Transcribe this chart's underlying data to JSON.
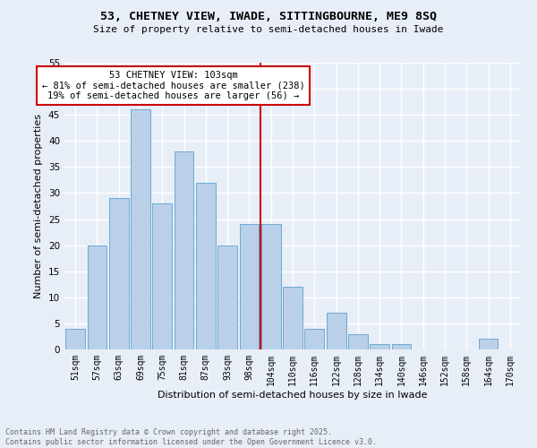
{
  "title": "53, CHETNEY VIEW, IWADE, SITTINGBOURNE, ME9 8SQ",
  "subtitle": "Size of property relative to semi-detached houses in Iwade",
  "xlabel": "Distribution of semi-detached houses by size in Iwade",
  "ylabel": "Number of semi-detached properties",
  "categories": [
    "51sqm",
    "57sqm",
    "63sqm",
    "69sqm",
    "75sqm",
    "81sqm",
    "87sqm",
    "93sqm",
    "98sqm",
    "104sqm",
    "110sqm",
    "116sqm",
    "122sqm",
    "128sqm",
    "134sqm",
    "140sqm",
    "146sqm",
    "152sqm",
    "158sqm",
    "164sqm",
    "170sqm"
  ],
  "values": [
    4,
    20,
    29,
    46,
    28,
    38,
    32,
    20,
    24,
    24,
    12,
    4,
    7,
    3,
    1,
    1,
    0,
    0,
    0,
    2,
    0
  ],
  "bar_color": "#bad0e8",
  "bar_edge_color": "#6aaad4",
  "vline_index": 9,
  "vline_color": "#cc0000",
  "annotation_title": "53 CHETNEY VIEW: 103sqm",
  "annotation_line1": "← 81% of semi-detached houses are smaller (238)",
  "annotation_line2": "19% of semi-detached houses are larger (56) →",
  "annotation_box_color": "#cc0000",
  "annotation_bg": "#ffffff",
  "ylim": [
    0,
    55
  ],
  "yticks": [
    0,
    5,
    10,
    15,
    20,
    25,
    30,
    35,
    40,
    45,
    50,
    55
  ],
  "footer1": "Contains HM Land Registry data © Crown copyright and database right 2025.",
  "footer2": "Contains public sector information licensed under the Open Government Licence v3.0.",
  "bg_color": "#e8eef8",
  "grid_color": "#ffffff",
  "title_fontsize": 9.5,
  "subtitle_fontsize": 8.0
}
